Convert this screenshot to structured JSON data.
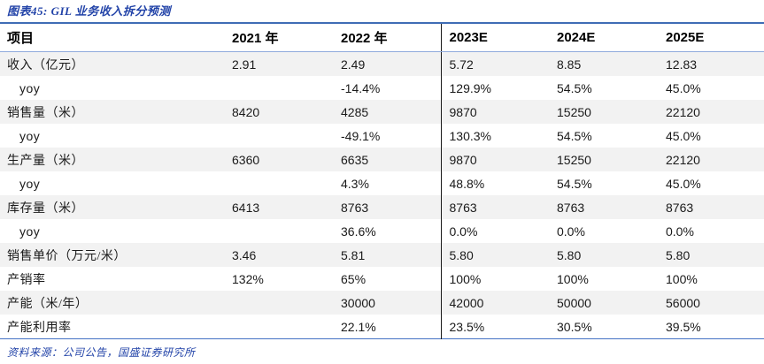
{
  "page": {
    "title": "图表45:  GIL 业务收入拆分预测",
    "source_note": "资料来源：公司公告，国盛证券研究所"
  },
  "colors": {
    "title_blue": "#2243a8",
    "table_top_border": "#3f6cb5",
    "header_underline": "#8faadc",
    "table_bottom_border": "#4472c4",
    "estimate_divider": "#1a1a1a",
    "stripe_background": "#f2f2f2"
  },
  "chart_data": {
    "type": "table",
    "title": "GIL 业务收入拆分预测",
    "columns": [
      "项目",
      "2021 年",
      "2022 年",
      "2023E",
      "2024E",
      "2025E"
    ],
    "rows": [
      {
        "label": "收入（亿元）",
        "indent": false,
        "values": [
          "2.91",
          "2.49",
          "5.72",
          "8.85",
          "12.83"
        ]
      },
      {
        "label": "yoy",
        "indent": true,
        "values": [
          "",
          "-14.4%",
          "129.9%",
          "54.5%",
          "45.0%"
        ]
      },
      {
        "label": "销售量（米）",
        "indent": false,
        "values": [
          "8420",
          "4285",
          "9870",
          "15250",
          "22120"
        ]
      },
      {
        "label": "yoy",
        "indent": true,
        "values": [
          "",
          "-49.1%",
          "130.3%",
          "54.5%",
          "45.0%"
        ]
      },
      {
        "label": "生产量（米）",
        "indent": false,
        "values": [
          "6360",
          "6635",
          "9870",
          "15250",
          "22120"
        ]
      },
      {
        "label": "yoy",
        "indent": true,
        "values": [
          "",
          "4.3%",
          "48.8%",
          "54.5%",
          "45.0%"
        ]
      },
      {
        "label": "库存量（米）",
        "indent": false,
        "values": [
          "6413",
          "8763",
          "8763",
          "8763",
          "8763"
        ]
      },
      {
        "label": "yoy",
        "indent": true,
        "values": [
          "",
          "36.6%",
          "0.0%",
          "0.0%",
          "0.0%"
        ]
      },
      {
        "label": "销售单价（万元/米）",
        "indent": false,
        "values": [
          "3.46",
          "5.81",
          "5.80",
          "5.80",
          "5.80"
        ]
      },
      {
        "label": "产销率",
        "indent": false,
        "values": [
          "132%",
          "65%",
          "100%",
          "100%",
          "100%"
        ]
      },
      {
        "label": "产能（米/年）",
        "indent": false,
        "values": [
          "",
          "30000",
          "42000",
          "50000",
          "56000"
        ]
      },
      {
        "label": "产能利用率",
        "indent": false,
        "values": [
          "",
          "22.1%",
          "23.5%",
          "30.5%",
          "39.5%"
        ]
      }
    ]
  }
}
